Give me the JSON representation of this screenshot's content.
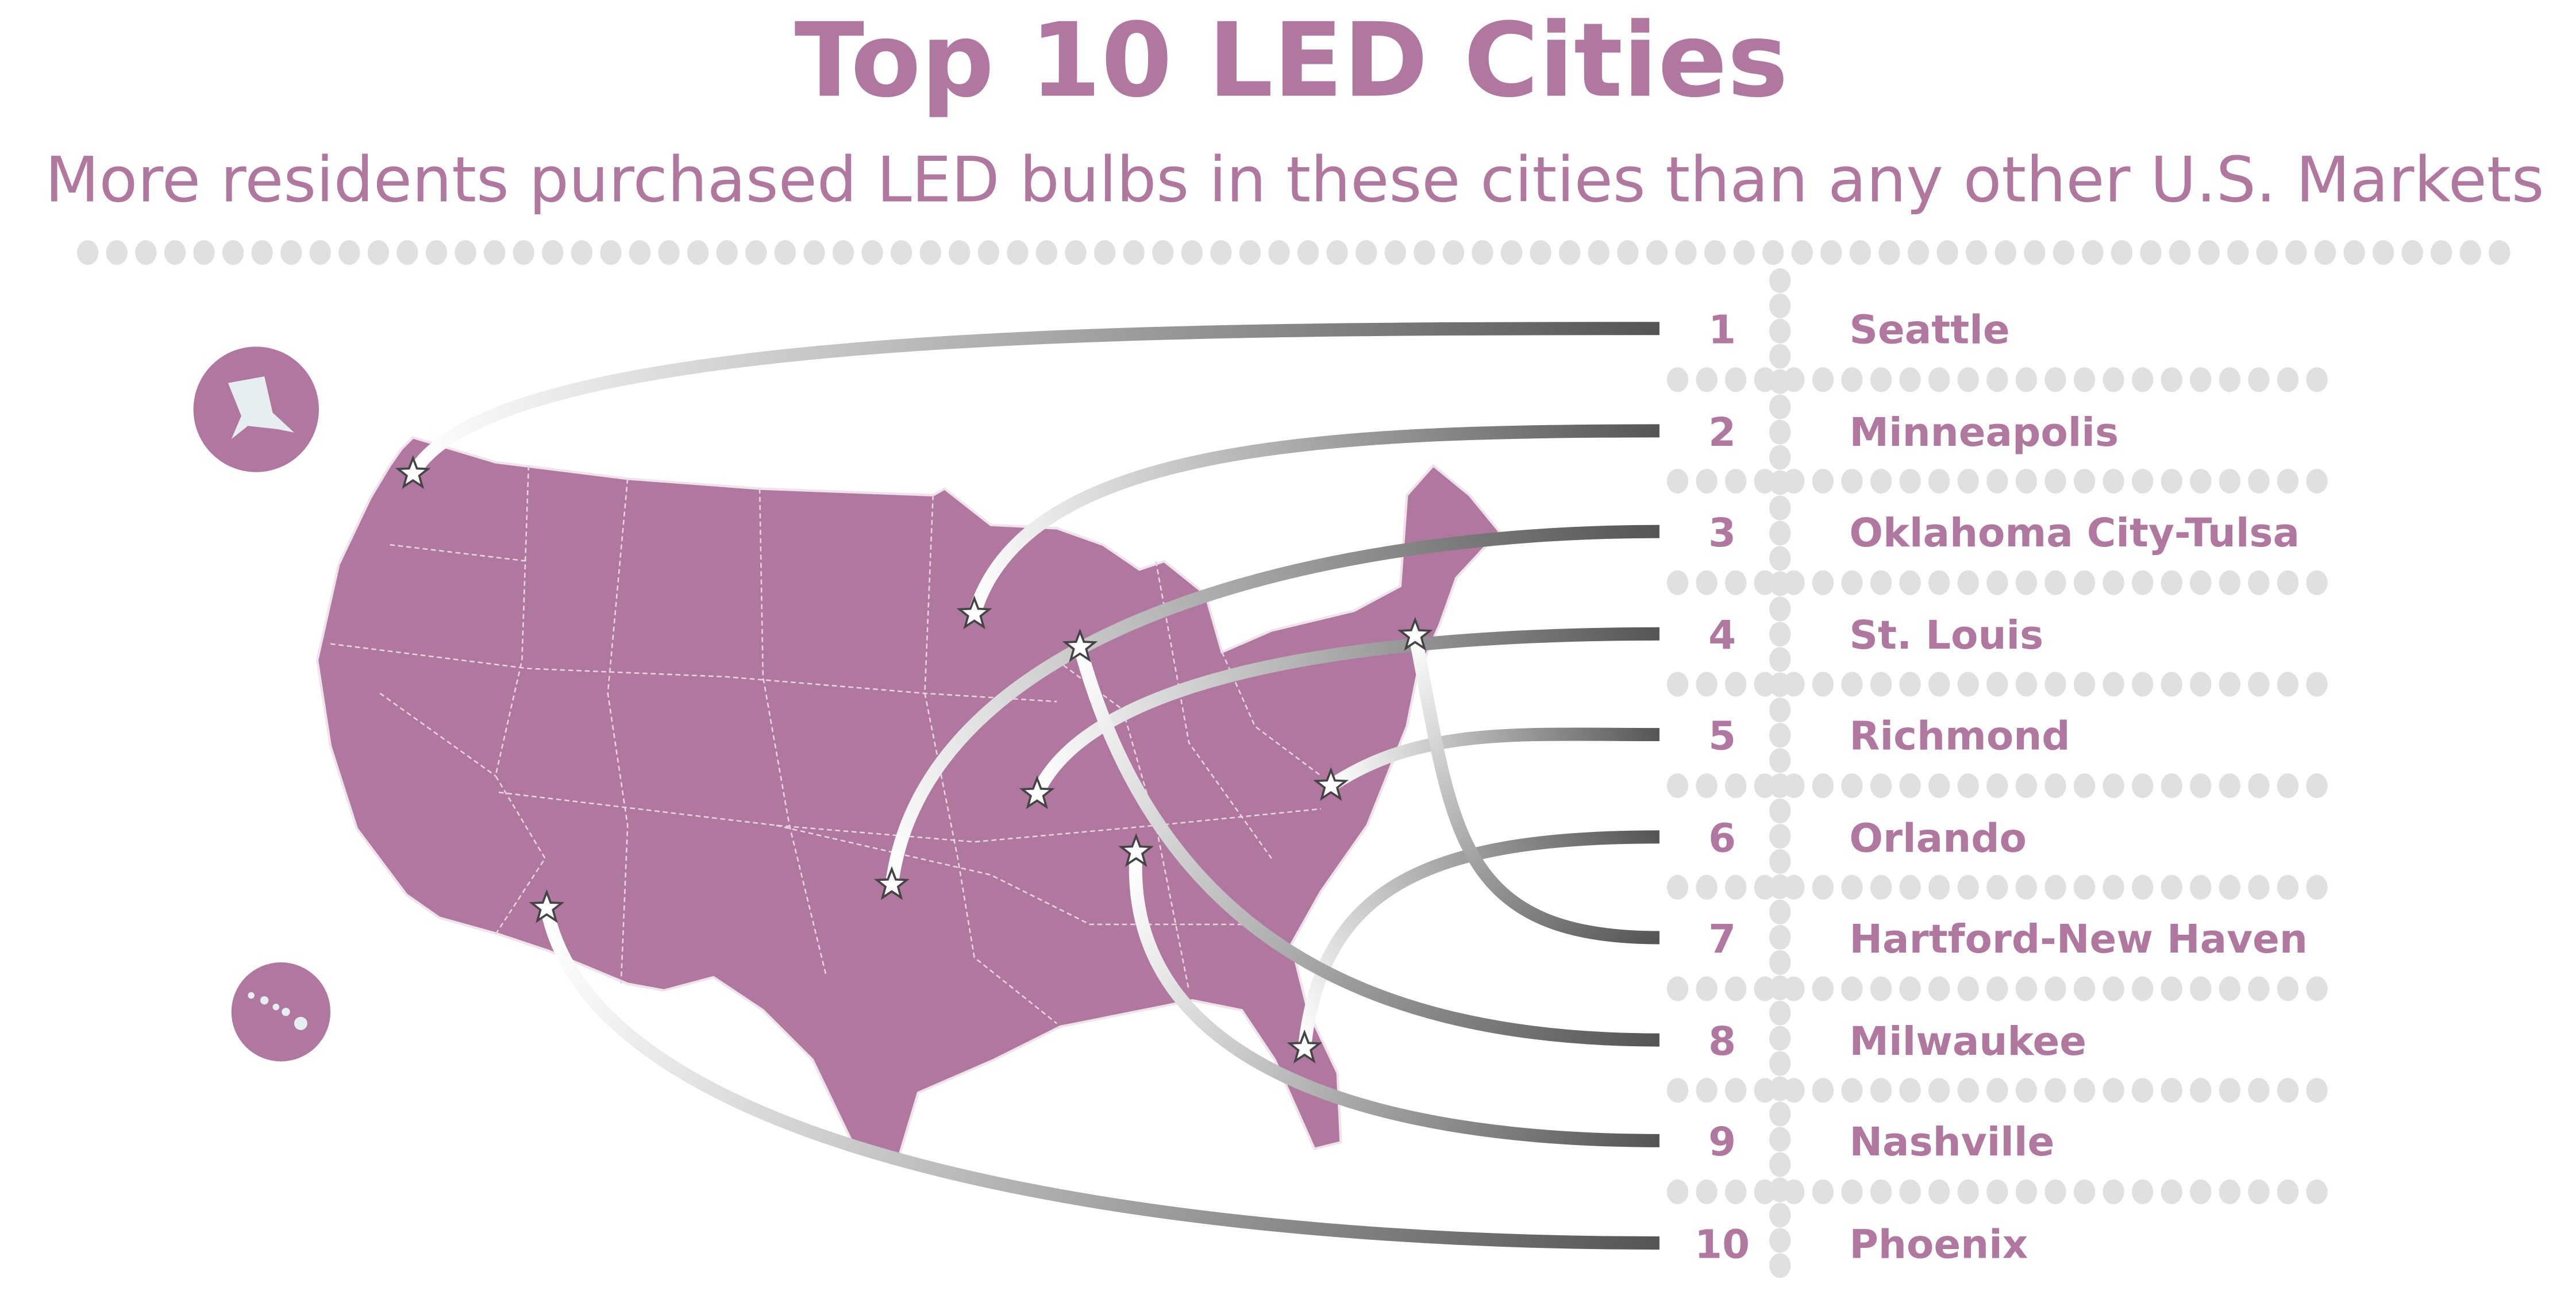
{
  "header": {
    "title": "Top 10 LED Cities",
    "subtitle": "More residents purchased LED bulbs in these cities than any other U.S. Markets"
  },
  "colors": {
    "brand": "#b0779f",
    "dots": "#e0e0e0",
    "line_dark": "#555555",
    "line_light": "#ffffff",
    "state_borders": "#e8d3e0"
  },
  "map": {
    "insets": [
      "alaska",
      "hawaii"
    ],
    "marker_icon": "star-icon"
  },
  "ranking": [
    {
      "rank": "1",
      "city": "Seattle"
    },
    {
      "rank": "2",
      "city": "Minneapolis"
    },
    {
      "rank": "3",
      "city": "Oklahoma City-Tulsa"
    },
    {
      "rank": "4",
      "city": "St. Louis"
    },
    {
      "rank": "5",
      "city": "Richmond"
    },
    {
      "rank": "6",
      "city": "Orlando"
    },
    {
      "rank": "7",
      "city": "Hartford-New Haven"
    },
    {
      "rank": "8",
      "city": "Milwaukee"
    },
    {
      "rank": "9",
      "city": "Nashville"
    },
    {
      "rank": "10",
      "city": "Phoenix"
    }
  ]
}
